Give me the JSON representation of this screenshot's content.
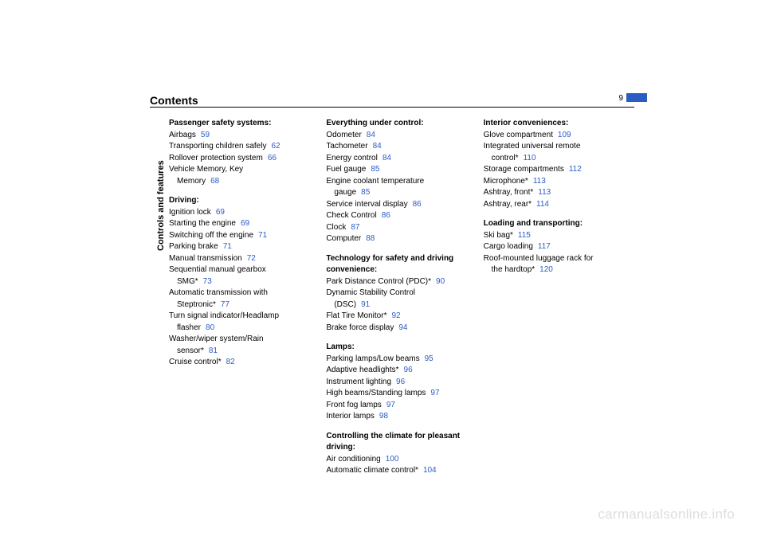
{
  "pageTitle": "Contents",
  "pageNumber": "9",
  "sideLabel": "Controls and features",
  "watermark": "carmanualsonline.info",
  "columns": [
    {
      "sections": [
        {
          "title": "Passenger safety systems:",
          "entries": [
            {
              "text": "Airbags",
              "page": "59"
            },
            {
              "text": "Transporting children safely",
              "page": "62"
            },
            {
              "text": "Rollover protection system",
              "page": "66"
            },
            {
              "text": "Vehicle Memory, Key",
              "cont": "Memory",
              "page": "68"
            }
          ]
        },
        {
          "title": "Driving:",
          "entries": [
            {
              "text": "Ignition lock",
              "page": "69"
            },
            {
              "text": "Starting the engine",
              "page": "69"
            },
            {
              "text": "Switching off the engine",
              "page": "71"
            },
            {
              "text": "Parking brake",
              "page": "71"
            },
            {
              "text": "Manual transmission",
              "page": "72"
            },
            {
              "text": "Sequential manual gearbox",
              "cont": "SMG*",
              "page": "73"
            },
            {
              "text": "Automatic transmission with",
              "cont": "Steptronic*",
              "page": "77"
            },
            {
              "text": "Turn signal indicator/Headlamp",
              "cont": "flasher",
              "page": "80"
            },
            {
              "text": "Washer/wiper system/Rain",
              "cont": "sensor*",
              "page": "81"
            },
            {
              "text": "Cruise control*",
              "page": "82"
            }
          ]
        }
      ]
    },
    {
      "sections": [
        {
          "title": "Everything under control:",
          "entries": [
            {
              "text": "Odometer",
              "page": "84"
            },
            {
              "text": "Tachometer",
              "page": "84"
            },
            {
              "text": "Energy control",
              "page": "84"
            },
            {
              "text": "Fuel gauge",
              "page": "85"
            },
            {
              "text": "Engine coolant temperature",
              "cont": "gauge",
              "page": "85"
            },
            {
              "text": "Service interval display",
              "page": "86"
            },
            {
              "text": "Check Control",
              "page": "86"
            },
            {
              "text": "Clock",
              "page": "87"
            },
            {
              "text": "Computer",
              "page": "88"
            }
          ]
        },
        {
          "title": "Technology for safety and driving convenience:",
          "entries": [
            {
              "text": "Park Distance Control (PDC)*",
              "page": "90"
            },
            {
              "text": "Dynamic Stability Control",
              "cont": "(DSC)",
              "page": "91"
            },
            {
              "text": "Flat Tire Monitor*",
              "page": "92"
            },
            {
              "text": "Brake force display",
              "page": "94"
            }
          ]
        },
        {
          "title": "Lamps:",
          "entries": [
            {
              "text": "Parking lamps/Low beams",
              "page": "95"
            },
            {
              "text": "Adaptive headlights*",
              "page": "96"
            },
            {
              "text": "Instrument lighting",
              "page": "96"
            },
            {
              "text": "High beams/Standing lamps",
              "page": "97"
            },
            {
              "text": "Front fog lamps",
              "page": "97"
            },
            {
              "text": "Interior lamps",
              "page": "98"
            }
          ]
        },
        {
          "title": "Controlling the climate for pleasant driving:",
          "entries": [
            {
              "text": "Air conditioning",
              "page": "100"
            },
            {
              "text": "Automatic climate control*",
              "page": "104"
            }
          ]
        }
      ]
    },
    {
      "sections": [
        {
          "title": "Interior conveniences:",
          "entries": [
            {
              "text": "Glove compartment",
              "page": "109"
            },
            {
              "text": "Integrated universal remote",
              "cont": "control*",
              "page": "110"
            },
            {
              "text": "Storage compartments",
              "page": "112"
            },
            {
              "text": "Microphone*",
              "page": "113"
            },
            {
              "text": "Ashtray, front*",
              "page": "113"
            },
            {
              "text": "Ashtray, rear*",
              "page": "114"
            }
          ]
        },
        {
          "title": "Loading and transporting:",
          "entries": [
            {
              "text": "Ski bag*",
              "page": "115"
            },
            {
              "text": "Cargo loading",
              "page": "117"
            },
            {
              "text": "Roof-mounted luggage rack for",
              "cont": "the hardtop*",
              "page": "120"
            }
          ]
        }
      ]
    }
  ]
}
